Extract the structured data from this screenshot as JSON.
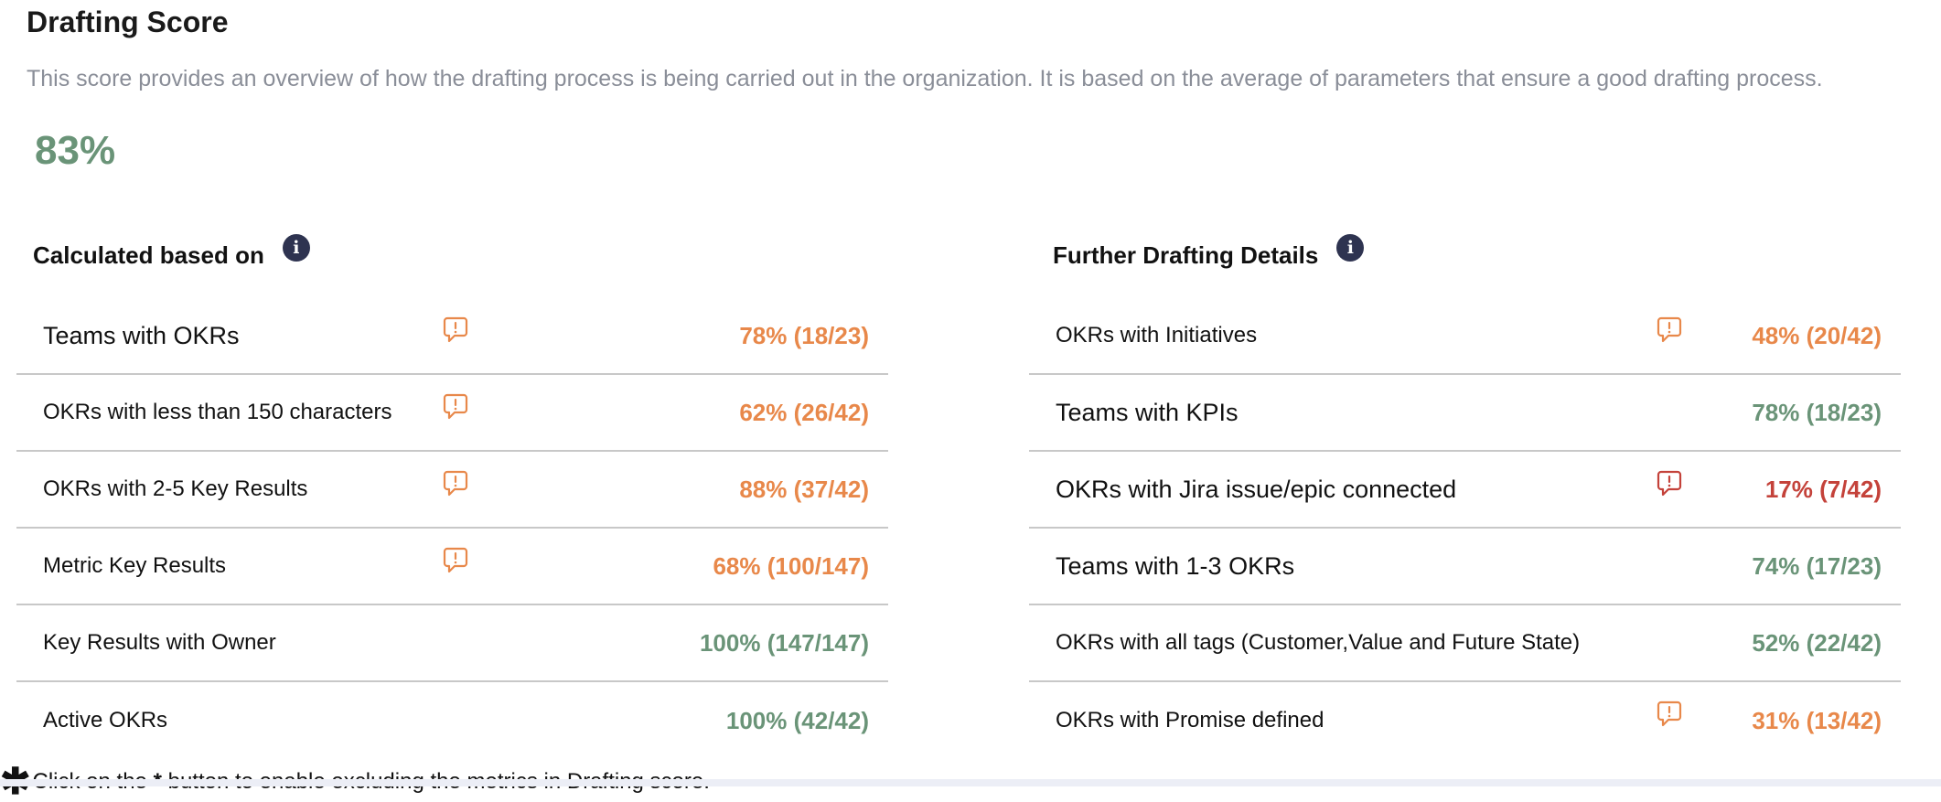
{
  "header": {
    "title": "Drafting Score",
    "description": "This score provides an overview of how the drafting process is being carried out in the organization. It is based on the average of parameters that ensure a good drafting process.",
    "score": "83%"
  },
  "colors": {
    "good": "#6a9478",
    "warn": "#e8884a",
    "bad": "#c4423a",
    "info_icon_bg": "#2e3350"
  },
  "left_section": {
    "title": "Calculated based on",
    "info_icon": "info-icon",
    "rows": [
      {
        "label": "Teams with OKRs",
        "value": "78% (18/23)",
        "status": "warn",
        "has_alert": true
      },
      {
        "label": "OKRs with less than 150 characters",
        "value": "62% (26/42)",
        "status": "warn",
        "has_alert": true
      },
      {
        "label": "OKRs with 2-5 Key Results",
        "value": "88% (37/42)",
        "status": "warn",
        "has_alert": true
      },
      {
        "label": "Metric Key Results",
        "value": "68% (100/147)",
        "status": "warn",
        "has_alert": true
      },
      {
        "label": "Key Results with Owner",
        "value": "100% (147/147)",
        "status": "good",
        "has_alert": false
      },
      {
        "label": "Active OKRs",
        "value": "100% (42/42)",
        "status": "good",
        "has_alert": false
      }
    ]
  },
  "right_section": {
    "title": "Further Drafting Details",
    "info_icon": "info-icon",
    "rows": [
      {
        "label": "OKRs with Initiatives",
        "value": "48% (20/42)",
        "status": "warn",
        "has_alert": true
      },
      {
        "label": "Teams with KPIs",
        "value": "78% (18/23)",
        "status": "good",
        "has_alert": false
      },
      {
        "label": "OKRs with Jira issue/epic connected",
        "value": "17% (7/42)",
        "status": "bad",
        "has_alert": true
      },
      {
        "label": "Teams with 1-3 OKRs",
        "value": "74% (17/23)",
        "status": "good",
        "has_alert": false
      },
      {
        "label": "OKRs with all tags (Customer,Value and Future State)",
        "value": "52% (22/42)",
        "status": "good",
        "has_alert": false
      },
      {
        "label": "OKRs with Promise defined",
        "value": "31% (13/42)",
        "status": "warn",
        "has_alert": true
      }
    ]
  },
  "footer": {
    "star": "✱",
    "text_before": "Click on the ",
    "star_inline": "*",
    "text_after": " button to enable excluding the metrics in Drafting score."
  }
}
